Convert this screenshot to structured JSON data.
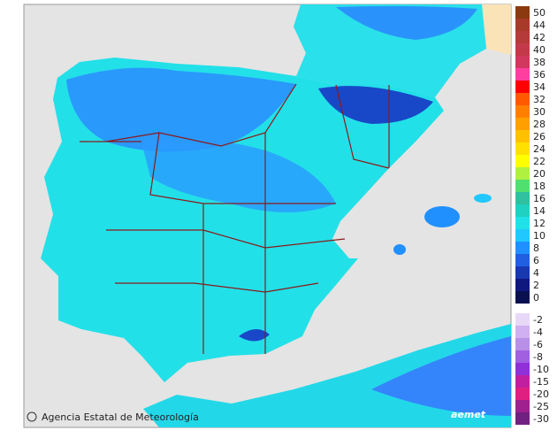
{
  "map": {
    "credit": "Agencia Estatal de Meteorología",
    "logo": "aemet"
  },
  "legend": {
    "positive": {
      "labels": [
        50,
        44,
        42,
        40,
        38,
        36,
        34,
        32,
        30,
        28,
        26,
        24,
        22,
        20,
        18,
        16,
        14,
        12,
        10,
        8,
        6,
        4,
        2,
        0
      ],
      "colors": [
        "#8b3a0f",
        "#a83a2a",
        "#b53a3a",
        "#c23a4a",
        "#d0385e",
        "#ff3fa0",
        "#ff0000",
        "#ff5a00",
        "#ff8000",
        "#ffa000",
        "#ffc000",
        "#ffe000",
        "#ffff00",
        "#b0f040",
        "#50e070",
        "#30c0a0",
        "#20d0c0",
        "#20e0e8",
        "#20c8ff",
        "#2090ff",
        "#2060e0",
        "#1838b0",
        "#101880",
        "#081050"
      ]
    },
    "negative": {
      "labels": [
        -2,
        -4,
        -6,
        -8,
        -10,
        -15,
        -20,
        -25,
        -30
      ],
      "colors": [
        "#e8d8f8",
        "#d0b0f0",
        "#b890e8",
        "#a060e0",
        "#9030d8",
        "#c020a0",
        "#e02080",
        "#a02090",
        "#702080"
      ]
    }
  }
}
